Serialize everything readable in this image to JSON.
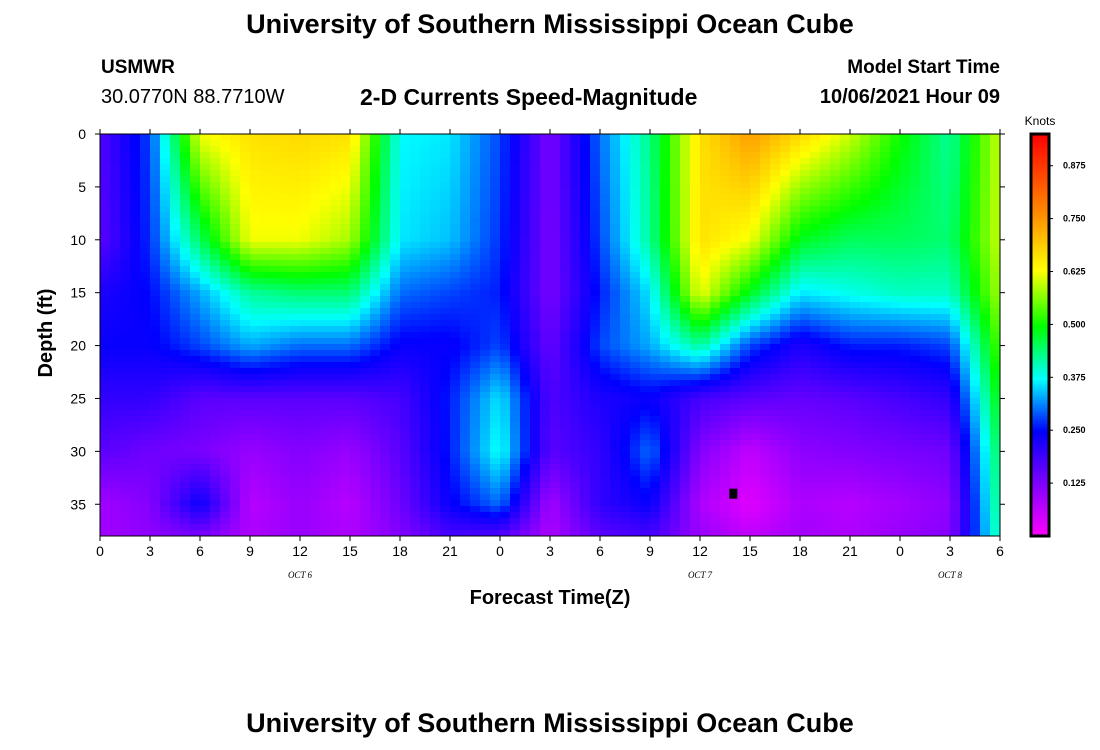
{
  "header": {
    "title": "University of Southern Mississippi Ocean Cube",
    "station_name": "USMWR",
    "station_coords": "30.0770N  88.7710W",
    "model_start_label": "Model Start Time",
    "model_start_value": "10/06/2021 Hour 09"
  },
  "footer": {
    "title": "University of Southern Mississippi Ocean Cube"
  },
  "chart_data": {
    "type": "heatmap",
    "title": "2-D Currents Speed-Magnitude",
    "xlabel": "Forecast Time(Z)",
    "ylabel": "Depth (ft)",
    "x_tick_labels": [
      "0",
      "3",
      "6",
      "9",
      "12",
      "15",
      "18",
      "21",
      "0",
      "3",
      "6",
      "9",
      "12",
      "15",
      "18",
      "21",
      "0",
      "3",
      "6"
    ],
    "day_labels": [
      {
        "label": "OCT 6",
        "hour": 12
      },
      {
        "label": "OCT 7",
        "hour": 36
      },
      {
        "label": "OCT 8",
        "hour": 51
      }
    ],
    "x_range_hours": [
      0,
      54
    ],
    "y_ticks": [
      0,
      5,
      10,
      15,
      20,
      25,
      30,
      35
    ],
    "ylim": [
      0,
      38
    ],
    "colorbar": {
      "label": "Knots",
      "ticks": [
        0.125,
        0.25,
        0.375,
        0.5,
        0.625,
        0.75,
        0.875
      ],
      "tick_labels": [
        "0.125",
        "0.250",
        "0.375",
        "0.500",
        "0.625",
        "0.750",
        "0.875"
      ],
      "range": [
        0,
        0.95
      ]
    },
    "marker": {
      "hour": 38,
      "depth": 34
    },
    "depths": [
      0,
      10,
      15,
      20,
      25,
      30,
      35,
      38
    ],
    "hours": [
      0,
      3,
      6,
      9,
      12,
      15,
      18,
      21,
      24,
      27,
      30,
      33,
      36,
      39,
      42,
      45,
      48,
      51,
      54
    ],
    "values": [
      [
        0.17,
        0.28,
        0.62,
        0.66,
        0.67,
        0.66,
        0.37,
        0.36,
        0.28,
        0.13,
        0.3,
        0.43,
        0.66,
        0.74,
        0.67,
        0.6,
        0.5,
        0.42,
        0.6
      ],
      [
        0.16,
        0.27,
        0.45,
        0.62,
        0.62,
        0.58,
        0.36,
        0.34,
        0.27,
        0.13,
        0.28,
        0.42,
        0.66,
        0.62,
        0.48,
        0.45,
        0.45,
        0.44,
        0.6
      ],
      [
        0.22,
        0.25,
        0.33,
        0.42,
        0.44,
        0.44,
        0.3,
        0.28,
        0.26,
        0.13,
        0.26,
        0.36,
        0.62,
        0.48,
        0.36,
        0.38,
        0.4,
        0.4,
        0.58
      ],
      [
        0.24,
        0.24,
        0.28,
        0.33,
        0.3,
        0.3,
        0.24,
        0.24,
        0.28,
        0.15,
        0.28,
        0.33,
        0.42,
        0.28,
        0.22,
        0.26,
        0.26,
        0.28,
        0.54
      ],
      [
        0.2,
        0.2,
        0.16,
        0.16,
        0.16,
        0.16,
        0.18,
        0.26,
        0.36,
        0.17,
        0.22,
        0.24,
        0.18,
        0.16,
        0.15,
        0.16,
        0.18,
        0.2,
        0.5
      ],
      [
        0.16,
        0.14,
        0.13,
        0.1,
        0.12,
        0.1,
        0.16,
        0.26,
        0.38,
        0.16,
        0.2,
        0.3,
        0.12,
        0.06,
        0.11,
        0.12,
        0.13,
        0.14,
        0.46
      ],
      [
        0.09,
        0.12,
        0.24,
        0.07,
        0.1,
        0.07,
        0.14,
        0.24,
        0.3,
        0.09,
        0.2,
        0.24,
        0.08,
        0.03,
        0.08,
        0.07,
        0.09,
        0.11,
        0.44
      ],
      [
        0.09,
        0.11,
        0.13,
        0.08,
        0.1,
        0.08,
        0.12,
        0.18,
        0.17,
        0.08,
        0.16,
        0.18,
        0.1,
        0.06,
        0.09,
        0.08,
        0.1,
        0.12,
        0.42
      ]
    ]
  }
}
